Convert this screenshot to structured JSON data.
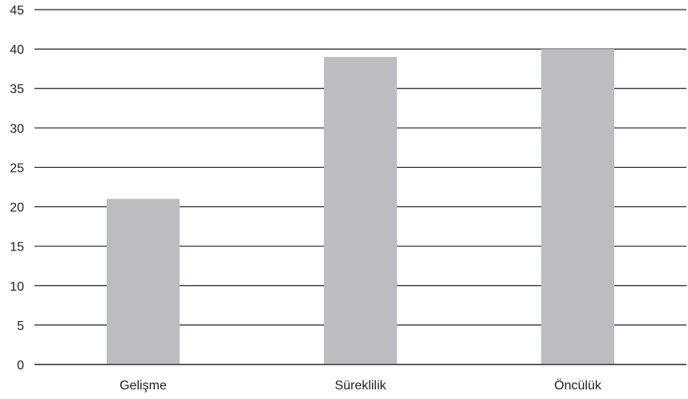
{
  "chart_data": {
    "type": "bar",
    "categories": [
      "Gelişme",
      "Süreklilik",
      "Öncülük"
    ],
    "values": [
      21,
      39,
      40
    ],
    "ylim": [
      0,
      45
    ],
    "yticks": [
      0,
      5,
      10,
      15,
      20,
      25,
      30,
      35,
      40,
      45
    ],
    "grid": true,
    "legend": "none",
    "bar_color": "#bcbdc0",
    "axis_color": "#231f20"
  }
}
